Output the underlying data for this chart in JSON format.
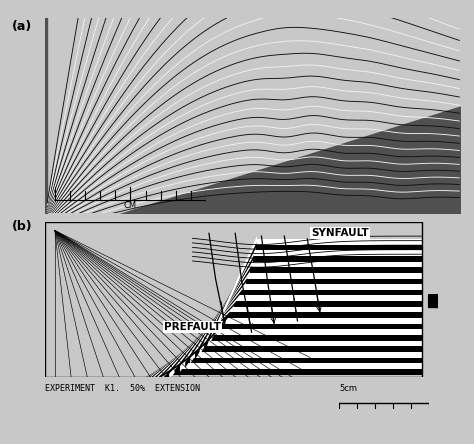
{
  "title_a": "(a)",
  "title_b": "(b)",
  "label_synfault": "SYNFAULT",
  "label_prefault": "PREFAULT",
  "experiment_label": "EXPERIMENT  K1.  50%  EXTENSION",
  "scale_label_b": "5cm",
  "scale_label_a": "CM",
  "fig_bg": "#c8c8c8",
  "photo_bg": "#505050",
  "panel_b_bg": "#ffffff",
  "n_layers_a": 34,
  "n_layers_b": 24,
  "n_fan_lines": 20
}
